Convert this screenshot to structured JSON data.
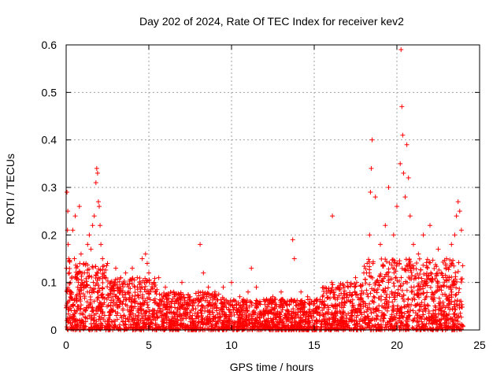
{
  "chart_data": {
    "type": "scatter",
    "title": "Day 202 of 2024, Rate Of TEC Index for receiver kev2",
    "xlabel": "GPS time / hours",
    "ylabel": "ROTI / TECUs",
    "xlim": [
      0,
      25
    ],
    "ylim": [
      0,
      0.6
    ],
    "xticks": [
      0,
      5,
      10,
      15,
      20,
      25
    ],
    "yticks": [
      0,
      0.1,
      0.2,
      0.3,
      0.4,
      0.5,
      0.6
    ],
    "xtick_labels": [
      "0",
      "5",
      "10",
      "15",
      "20",
      "25"
    ],
    "ytick_labels": [
      "0",
      "0.1",
      "0.2",
      "0.3",
      "0.4",
      "0.5",
      "0.6"
    ],
    "grid": true,
    "marker": "+",
    "marker_color": "#ff0000",
    "series": [
      {
        "x": [
          0.02,
          0.05,
          0.08,
          0.1,
          0.12,
          0.15,
          0.2,
          0.25,
          0.3,
          0.4,
          0.5,
          0.55,
          0.6,
          0.7,
          0.8,
          0.9,
          1.0,
          1.1,
          1.2,
          1.3,
          1.4,
          1.5,
          1.6,
          1.7,
          1.8,
          1.85,
          1.9,
          1.95,
          2.0,
          2.05,
          2.1,
          2.2,
          2.3,
          2.5,
          2.7,
          3.0,
          3.3,
          3.6,
          4.0,
          4.3,
          4.6,
          4.8,
          4.9,
          5.0,
          5.3,
          5.6,
          6.0,
          6.5,
          7.0,
          7.5,
          8.0,
          8.1,
          8.3,
          8.6,
          9.0,
          9.5,
          10.0,
          10.5,
          11.0,
          11.2,
          11.5,
          12.0,
          12.5,
          13.0,
          13.5,
          13.7,
          13.8,
          14.2,
          14.6,
          15.0,
          15.5,
          16.0,
          16.1,
          16.5,
          17.0,
          17.5,
          18.0,
          18.2,
          18.35,
          18.4,
          18.45,
          18.5,
          18.7,
          19.0,
          19.3,
          19.5,
          19.8,
          20.0,
          20.2,
          20.25,
          20.3,
          20.35,
          20.4,
          20.5,
          20.6,
          20.7,
          20.8,
          21.0,
          21.3,
          21.6,
          22.0,
          22.5,
          23.0,
          23.3,
          23.5,
          23.6,
          23.7,
          23.8,
          23.9
        ],
        "y": [
          0.13,
          0.29,
          0.21,
          0.25,
          0.18,
          0.15,
          0.12,
          0.1,
          0.08,
          0.21,
          0.15,
          0.24,
          0.11,
          0.09,
          0.26,
          0.16,
          0.12,
          0.1,
          0.14,
          0.18,
          0.2,
          0.17,
          0.22,
          0.24,
          0.31,
          0.34,
          0.33,
          0.27,
          0.26,
          0.22,
          0.18,
          0.15,
          0.12,
          0.14,
          0.1,
          0.13,
          0.11,
          0.12,
          0.13,
          0.11,
          0.15,
          0.16,
          0.14,
          0.12,
          0.1,
          0.11,
          0.09,
          0.08,
          0.1,
          0.07,
          0.08,
          0.18,
          0.12,
          0.09,
          0.08,
          0.09,
          0.1,
          0.07,
          0.08,
          0.13,
          0.09,
          0.06,
          0.07,
          0.08,
          0.06,
          0.19,
          0.15,
          0.08,
          0.07,
          0.06,
          0.07,
          0.08,
          0.24,
          0.09,
          0.1,
          0.11,
          0.12,
          0.14,
          0.2,
          0.29,
          0.34,
          0.4,
          0.28,
          0.18,
          0.22,
          0.3,
          0.2,
          0.26,
          0.35,
          0.59,
          0.47,
          0.41,
          0.33,
          0.28,
          0.39,
          0.32,
          0.24,
          0.18,
          0.16,
          0.2,
          0.22,
          0.17,
          0.15,
          0.18,
          0.2,
          0.24,
          0.27,
          0.25,
          0.21
        ]
      }
    ],
    "band": {
      "note_points": "dense background noise from 0 to 24 hours, ROTI values mostly 0.0 to 0.1",
      "x_start": 0,
      "x_end": 24
    }
  }
}
